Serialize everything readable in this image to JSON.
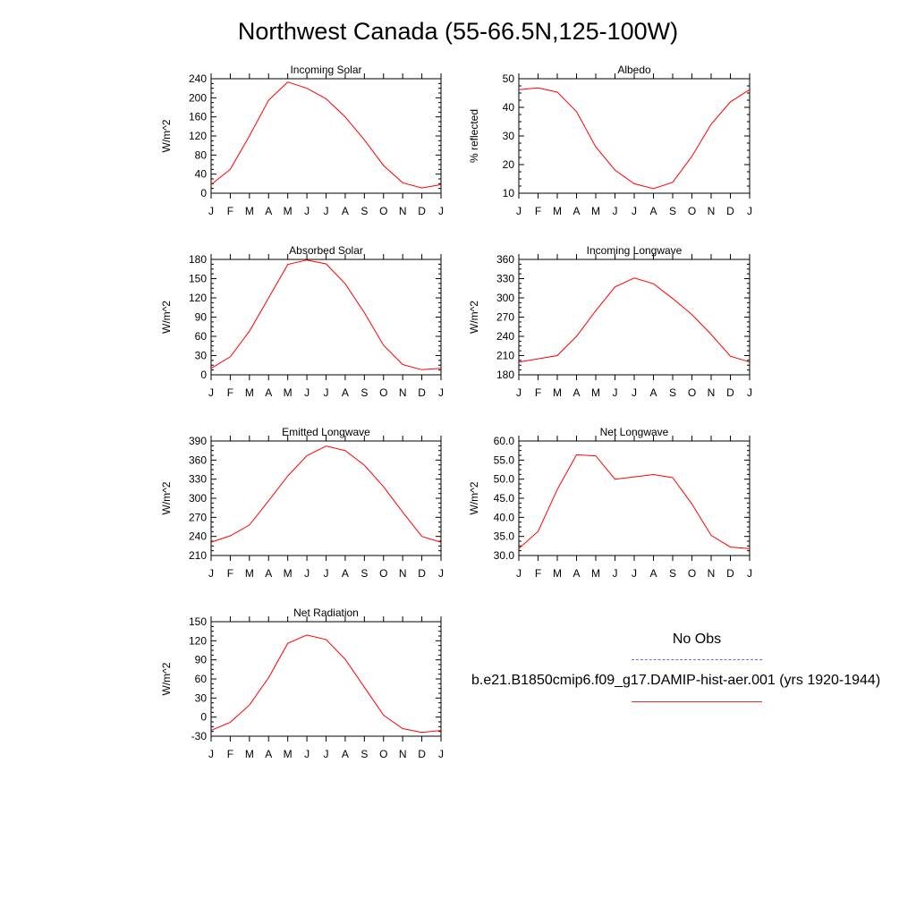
{
  "title": "Northwest Canada (55-66.5N,125-100W)",
  "colors": {
    "model": "#ff0000",
    "obs": "#6b6bd6",
    "axis": "#000000"
  },
  "months": [
    "J",
    "F",
    "M",
    "A",
    "M",
    "J",
    "J",
    "A",
    "S",
    "O",
    "N",
    "D",
    "J"
  ],
  "chart_data": [
    {
      "type": "line",
      "title": "Incoming Solar",
      "ylabel": "W/m^2",
      "ylim": [
        0,
        240
      ],
      "yticks": [
        0,
        40,
        80,
        120,
        160,
        200,
        240
      ],
      "decimals": 0,
      "series": [
        {
          "values": [
            18,
            50,
            120,
            195,
            233,
            220,
            198,
            160,
            112,
            58,
            22,
            11,
            18
          ]
        }
      ]
    },
    {
      "type": "line",
      "title": "Albedo",
      "ylabel": "% reflected",
      "ylim": [
        10,
        50
      ],
      "yticks": [
        10,
        20,
        30,
        40,
        50
      ],
      "decimals": 0,
      "series": [
        {
          "values": [
            46.2,
            46.8,
            45.3,
            38.5,
            26.2,
            18.1,
            13.3,
            11.6,
            13.8,
            22.9,
            34.1,
            41.9,
            46.2
          ]
        }
      ]
    },
    {
      "type": "line",
      "title": "Absorbed Solar",
      "ylabel": "W/m^2",
      "ylim": [
        0,
        180
      ],
      "yticks": [
        0,
        30,
        60,
        90,
        120,
        150,
        180
      ],
      "decimals": 0,
      "series": [
        {
          "values": [
            10,
            28,
            68,
            120,
            172,
            179,
            173,
            142,
            97,
            46,
            16,
            8,
            10
          ]
        }
      ]
    },
    {
      "type": "line",
      "title": "Incoming Longwave",
      "ylabel": "W/m^2",
      "ylim": [
        180,
        360
      ],
      "yticks": [
        180,
        210,
        240,
        270,
        300,
        330,
        360
      ],
      "decimals": 0,
      "series": [
        {
          "values": [
            200,
            205,
            210,
            240,
            280,
            317,
            331,
            322,
            299,
            274,
            243,
            209,
            200
          ]
        }
      ]
    },
    {
      "type": "line",
      "title": "Emitted Longwave",
      "ylabel": "W/m^2",
      "ylim": [
        210,
        390
      ],
      "yticks": [
        210,
        240,
        270,
        300,
        330,
        360,
        390
      ],
      "decimals": 0,
      "series": [
        {
          "values": [
            231,
            241,
            258,
            296,
            335,
            367,
            382,
            375,
            352,
            318,
            278,
            240,
            231
          ]
        }
      ]
    },
    {
      "type": "line",
      "title": "Net Longwave",
      "ylabel": "W/m^2",
      "ylim": [
        30,
        60
      ],
      "yticks": [
        30.0,
        35.0,
        40.0,
        45.0,
        50.0,
        55.0,
        60.0
      ],
      "decimals": 1,
      "series": [
        {
          "values": [
            31.8,
            36.3,
            47.3,
            56.4,
            56.1,
            50.0,
            50.6,
            51.2,
            50.4,
            43.5,
            35.3,
            32.2,
            31.8
          ]
        }
      ]
    },
    {
      "type": "line",
      "title": "Net Radiation",
      "ylabel": "W/m^2",
      "ylim": [
        -30,
        150
      ],
      "yticks": [
        -30,
        0,
        30,
        60,
        90,
        120,
        150
      ],
      "decimals": 0,
      "series": [
        {
          "values": [
            -21,
            -8,
            19,
            62,
            116,
            129,
            122,
            91,
            47,
            3,
            -18,
            -24,
            -21
          ]
        }
      ]
    }
  ],
  "legend": {
    "obs_label": "No Obs",
    "model_label": "b.e21.B1850cmip6.f09_g17.DAMIP-hist-aer.001 (yrs 1920-1944)"
  }
}
